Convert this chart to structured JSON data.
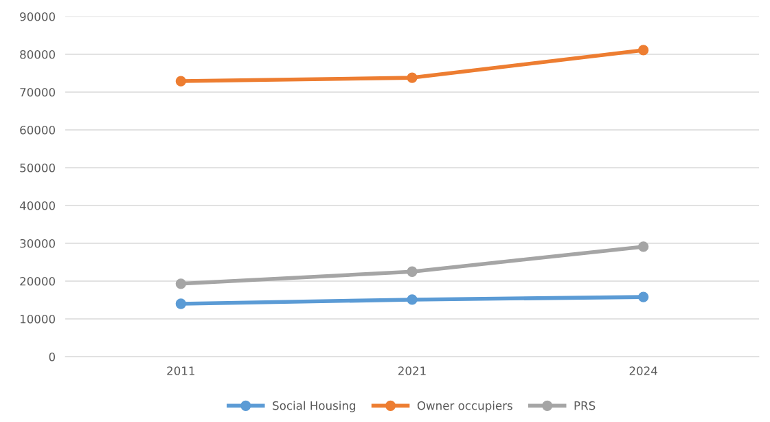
{
  "chart_data": {
    "type": "line",
    "categories": [
      "2011",
      "2021",
      "2024"
    ],
    "series": [
      {
        "name": "Social Housing",
        "color": "#5b9bd5",
        "values": [
          14000,
          15100,
          15800
        ]
      },
      {
        "name": "Owner occupiers",
        "color": "#ed7d31",
        "values": [
          72900,
          73800,
          81100
        ]
      },
      {
        "name": "PRS",
        "color": "#a5a5a5",
        "values": [
          19300,
          22500,
          29100
        ]
      }
    ],
    "ylim": [
      0,
      90000
    ],
    "yticks": [
      0,
      10000,
      20000,
      30000,
      40000,
      50000,
      60000,
      70000,
      80000,
      90000
    ],
    "grid": "y",
    "legend": "bottom",
    "marker": "circle",
    "line_style": "solid"
  }
}
